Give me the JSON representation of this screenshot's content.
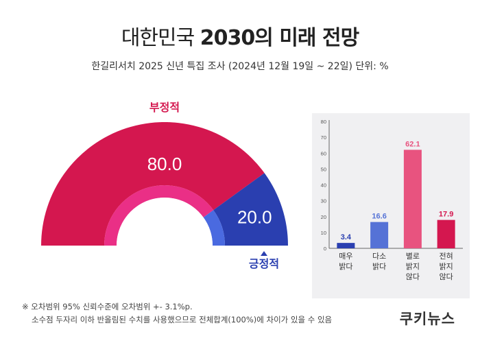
{
  "header": {
    "title_light": "대한민국",
    "title_bold": "2030의 미래 전망",
    "subtitle": "한길리서치 2025 신년 특집 조사 (2024년 12월 19일 ~ 22일) 단위: %"
  },
  "chart_data": [
    {
      "type": "pie",
      "style": "half-donut",
      "categories": [
        "부정적",
        "긍정적"
      ],
      "values": [
        80.0,
        20.0
      ],
      "value_labels": [
        "80.0",
        "20.0"
      ],
      "colors": [
        "#d4174f",
        "#2a3fb0"
      ],
      "inner_ring_colors": [
        "#ea2f86",
        "#4a6ae0"
      ]
    },
    {
      "type": "bar",
      "categories": [
        [
          "매우",
          "밝다"
        ],
        [
          "다소",
          "밝다"
        ],
        [
          "별로",
          "밝지",
          "않다"
        ],
        [
          "전혀",
          "밝지",
          "않다"
        ]
      ],
      "values": [
        3.4,
        16.6,
        62.1,
        17.9
      ],
      "value_labels": [
        "3.4",
        "16.6",
        "62.1",
        "17.9"
      ],
      "ylim": [
        0,
        80
      ],
      "yticks": [
        0,
        10,
        20,
        30,
        40,
        50,
        60,
        70,
        80
      ],
      "grid": false,
      "bar_colors": [
        "#2a3fb0",
        "#5572d6",
        "#e8537f",
        "#d4174f"
      ],
      "label_colors": [
        "#2a3fb0",
        "#5572d6",
        "#e8537f",
        "#d4174f"
      ]
    }
  ],
  "footnote": {
    "line1": "※ 오차범위 95% 신뢰수준에 오차범위 +- 3.1%p.",
    "line2": "소수점 두자리 이하 반올림된 수치를 사용했으므로 전체합계(100%)에 차이가 있을 수 있음"
  },
  "brand": "쿠키뉴스"
}
